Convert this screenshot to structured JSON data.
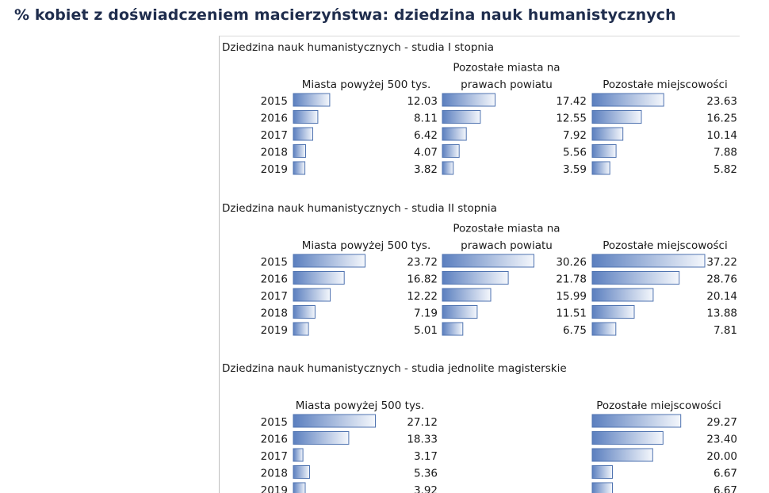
{
  "page_title": "% kobiet z doświadczeniem macierzyństwa: dziedzina nauk humanistycznych",
  "colors": {
    "bar_dark": "#5b7fbf",
    "bar_light": "#f4f7fc",
    "bar_border": "#4f73b0",
    "title": "#1f2d4d"
  },
  "chart_data": [
    {
      "type": "bar",
      "title": "Dziedzina nauk humanistycznych - studia I stopnia",
      "categories": [
        "2015",
        "2016",
        "2017",
        "2018",
        "2019"
      ],
      "series": [
        {
          "name": "Miasta powyżej 500 tys.",
          "values": [
            12.03,
            8.11,
            6.42,
            4.07,
            3.82
          ]
        },
        {
          "name": "Pozostałe miasta na prawach powiatu",
          "values": [
            17.42,
            12.55,
            7.92,
            5.56,
            3.59
          ]
        },
        {
          "name": "Pozostałe miejscowości",
          "values": [
            23.63,
            16.25,
            10.14,
            7.88,
            5.82
          ]
        }
      ]
    },
    {
      "type": "bar",
      "title": "Dziedzina nauk humanistycznych - studia II stopnia",
      "categories": [
        "2015",
        "2016",
        "2017",
        "2018",
        "2019"
      ],
      "series": [
        {
          "name": "Miasta powyżej 500 tys.",
          "values": [
            23.72,
            16.82,
            12.22,
            7.19,
            5.01
          ]
        },
        {
          "name": "Pozostałe miasta na prawach powiatu",
          "values": [
            30.26,
            21.78,
            15.99,
            11.51,
            6.75
          ]
        },
        {
          "name": "Pozostałe miejscowości",
          "values": [
            37.22,
            28.76,
            20.14,
            13.88,
            7.81
          ]
        }
      ]
    },
    {
      "type": "bar",
      "title": "Dziedzina nauk humanistycznych - studia jednolite magisterskie",
      "categories": [
        "2015",
        "2016",
        "2017",
        "2018",
        "2019"
      ],
      "series": [
        {
          "name": "Miasta powyżej 500 tys.",
          "values": [
            27.12,
            18.33,
            3.17,
            5.36,
            3.92
          ]
        },
        {
          "name": "Pozostałe miejscowości",
          "values": [
            29.27,
            23.4,
            20.0,
            6.67,
            6.67
          ]
        }
      ]
    }
  ]
}
